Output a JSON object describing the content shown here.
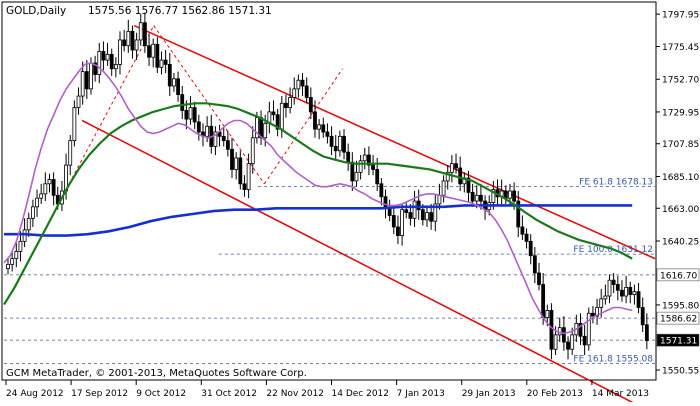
{
  "header": {
    "symbol": "GOLD,Daily",
    "ohlc": "1575.56 1576.77 1562.86 1571.31"
  },
  "footer": {
    "copyright": "GCM MetaTrader, © 2001-2013, MetaQuotes Software Corp."
  },
  "chart_data": {
    "type": "candlestick",
    "title": "GOLD,Daily",
    "ylim": [
      1545,
      1805
    ],
    "y_ticks": [
      "1797.95",
      "1775.45",
      "1752.70",
      "1729.95",
      "1707.85",
      "1685.10",
      "1663.00",
      "1640.25",
      "1595.80",
      "1550.55"
    ],
    "x_ticks": [
      "24 Aug 2012",
      "17 Sep 2012",
      "9 Oct 2012",
      "31 Oct 2012",
      "22 Nov 2012",
      "14 Dec 2012",
      "7 Jan 2013",
      "29 Jan 2013",
      "20 Feb 2013",
      "14 Mar 2013"
    ],
    "price_tags": [
      {
        "label": "1616.70",
        "value": 1616.7,
        "style": "light"
      },
      {
        "label": "1586.62",
        "value": 1586.62,
        "style": "light"
      },
      {
        "label": "1571.31",
        "value": 1571.31,
        "style": "dark"
      }
    ],
    "fib_levels": [
      {
        "label": "FE 61.8 1678.13",
        "value": 1678.13,
        "from_index": 0.39
      },
      {
        "label": "FE 100.0 1631.12",
        "value": 1631.12,
        "from_index": 0.33
      },
      {
        "label": "FE 161.8 1555.08",
        "value": 1555.08,
        "from_index": 0.0
      }
    ],
    "horizontal_levels": [
      1616.7,
      1586.62,
      1571.31
    ],
    "series": {
      "close": [
        1624,
        1628,
        1633,
        1640,
        1648,
        1656,
        1664,
        1670,
        1673,
        1680,
        1683,
        1672,
        1666,
        1675,
        1693,
        1710,
        1733,
        1741,
        1758,
        1746,
        1764,
        1756,
        1772,
        1766,
        1770,
        1760,
        1763,
        1780,
        1776,
        1786,
        1773,
        1780,
        1792,
        1776,
        1768,
        1777,
        1761,
        1766,
        1763,
        1748,
        1753,
        1742,
        1731,
        1725,
        1733,
        1723,
        1716,
        1713,
        1720,
        1706,
        1716,
        1713,
        1710,
        1704,
        1690,
        1698,
        1680,
        1676,
        1694,
        1712,
        1726,
        1712,
        1722,
        1730,
        1728,
        1718,
        1736,
        1733,
        1740,
        1746,
        1752,
        1748,
        1740,
        1730,
        1718,
        1721,
        1716,
        1713,
        1706,
        1703,
        1713,
        1702,
        1695,
        1682,
        1688,
        1696,
        1700,
        1693,
        1690,
        1680,
        1671,
        1663,
        1658,
        1650,
        1644,
        1662,
        1660,
        1656,
        1668,
        1662,
        1655,
        1660,
        1654,
        1666,
        1672,
        1682,
        1688,
        1694,
        1691,
        1680,
        1684,
        1674,
        1668,
        1672,
        1668,
        1662,
        1667,
        1676,
        1671,
        1675,
        1670,
        1675,
        1668,
        1650,
        1645,
        1640,
        1630,
        1618,
        1610,
        1587,
        1592,
        1565,
        1575,
        1580,
        1570,
        1565,
        1575,
        1583,
        1574,
        1568,
        1590,
        1588,
        1594,
        1600,
        1602,
        1613,
        1610,
        1606,
        1602,
        1608,
        1603,
        1605,
        1594,
        1582,
        1571
      ],
      "sma_purple": [
        1625,
        1630,
        1640,
        1655,
        1672,
        1690,
        1705,
        1718,
        1728,
        1738,
        1746,
        1752,
        1758,
        1763,
        1764,
        1762,
        1758,
        1753,
        1747,
        1740,
        1732,
        1726,
        1720,
        1716,
        1715,
        1716,
        1718,
        1720,
        1722,
        1721,
        1718,
        1715,
        1713,
        1712,
        1714,
        1718,
        1722,
        1724,
        1724,
        1722,
        1718,
        1714,
        1710,
        1706,
        1700,
        1696,
        1692,
        1688,
        1685,
        1682,
        1679,
        1678,
        1678,
        1679,
        1680,
        1679,
        1678,
        1675,
        1673,
        1670,
        1668,
        1666,
        1665,
        1665,
        1666,
        1668,
        1670,
        1672,
        1673,
        1673,
        1672,
        1671,
        1670,
        1669,
        1668,
        1667,
        1665,
        1663,
        1660,
        1655,
        1648,
        1640,
        1630,
        1620,
        1610,
        1600,
        1592,
        1585,
        1580,
        1577,
        1576,
        1577,
        1579,
        1582,
        1585,
        1588,
        1590,
        1592,
        1594,
        1594,
        1593,
        1592
      ],
      "ema_green": [
        1596,
        1608,
        1622,
        1636,
        1650,
        1664,
        1678,
        1690,
        1700,
        1708,
        1715,
        1720,
        1724,
        1727,
        1730,
        1732,
        1734,
        1735,
        1736,
        1736,
        1735,
        1734,
        1732,
        1729,
        1726,
        1722,
        1718,
        1713,
        1708,
        1703,
        1699,
        1697,
        1695,
        1694,
        1694,
        1694,
        1694,
        1693,
        1692,
        1691,
        1690,
        1688,
        1686,
        1684,
        1682,
        1678,
        1674,
        1670,
        1665,
        1660,
        1655,
        1651,
        1647,
        1644,
        1641,
        1639,
        1637,
        1635,
        1632,
        1628
      ],
      "ema_blue": [
        1645,
        1645,
        1644,
        1644,
        1645,
        1647,
        1650,
        1654,
        1657,
        1659,
        1661,
        1662,
        1662,
        1663,
        1663,
        1663,
        1663,
        1663,
        1663,
        1664,
        1664,
        1664,
        1665,
        1665,
        1665,
        1665,
        1665,
        1665,
        1665,
        1665,
        1665
      ],
      "channel_upper": [
        [
          0.2,
          1790
        ],
        [
          1.0,
          1628
        ]
      ],
      "channel_lower": [
        [
          0.12,
          1724
        ],
        [
          1.0,
          1520
        ]
      ],
      "zigzag": [
        [
          0.1,
          1680
        ],
        [
          0.23,
          1790
        ],
        [
          0.4,
          1680
        ],
        [
          0.52,
          1760
        ]
      ]
    }
  }
}
